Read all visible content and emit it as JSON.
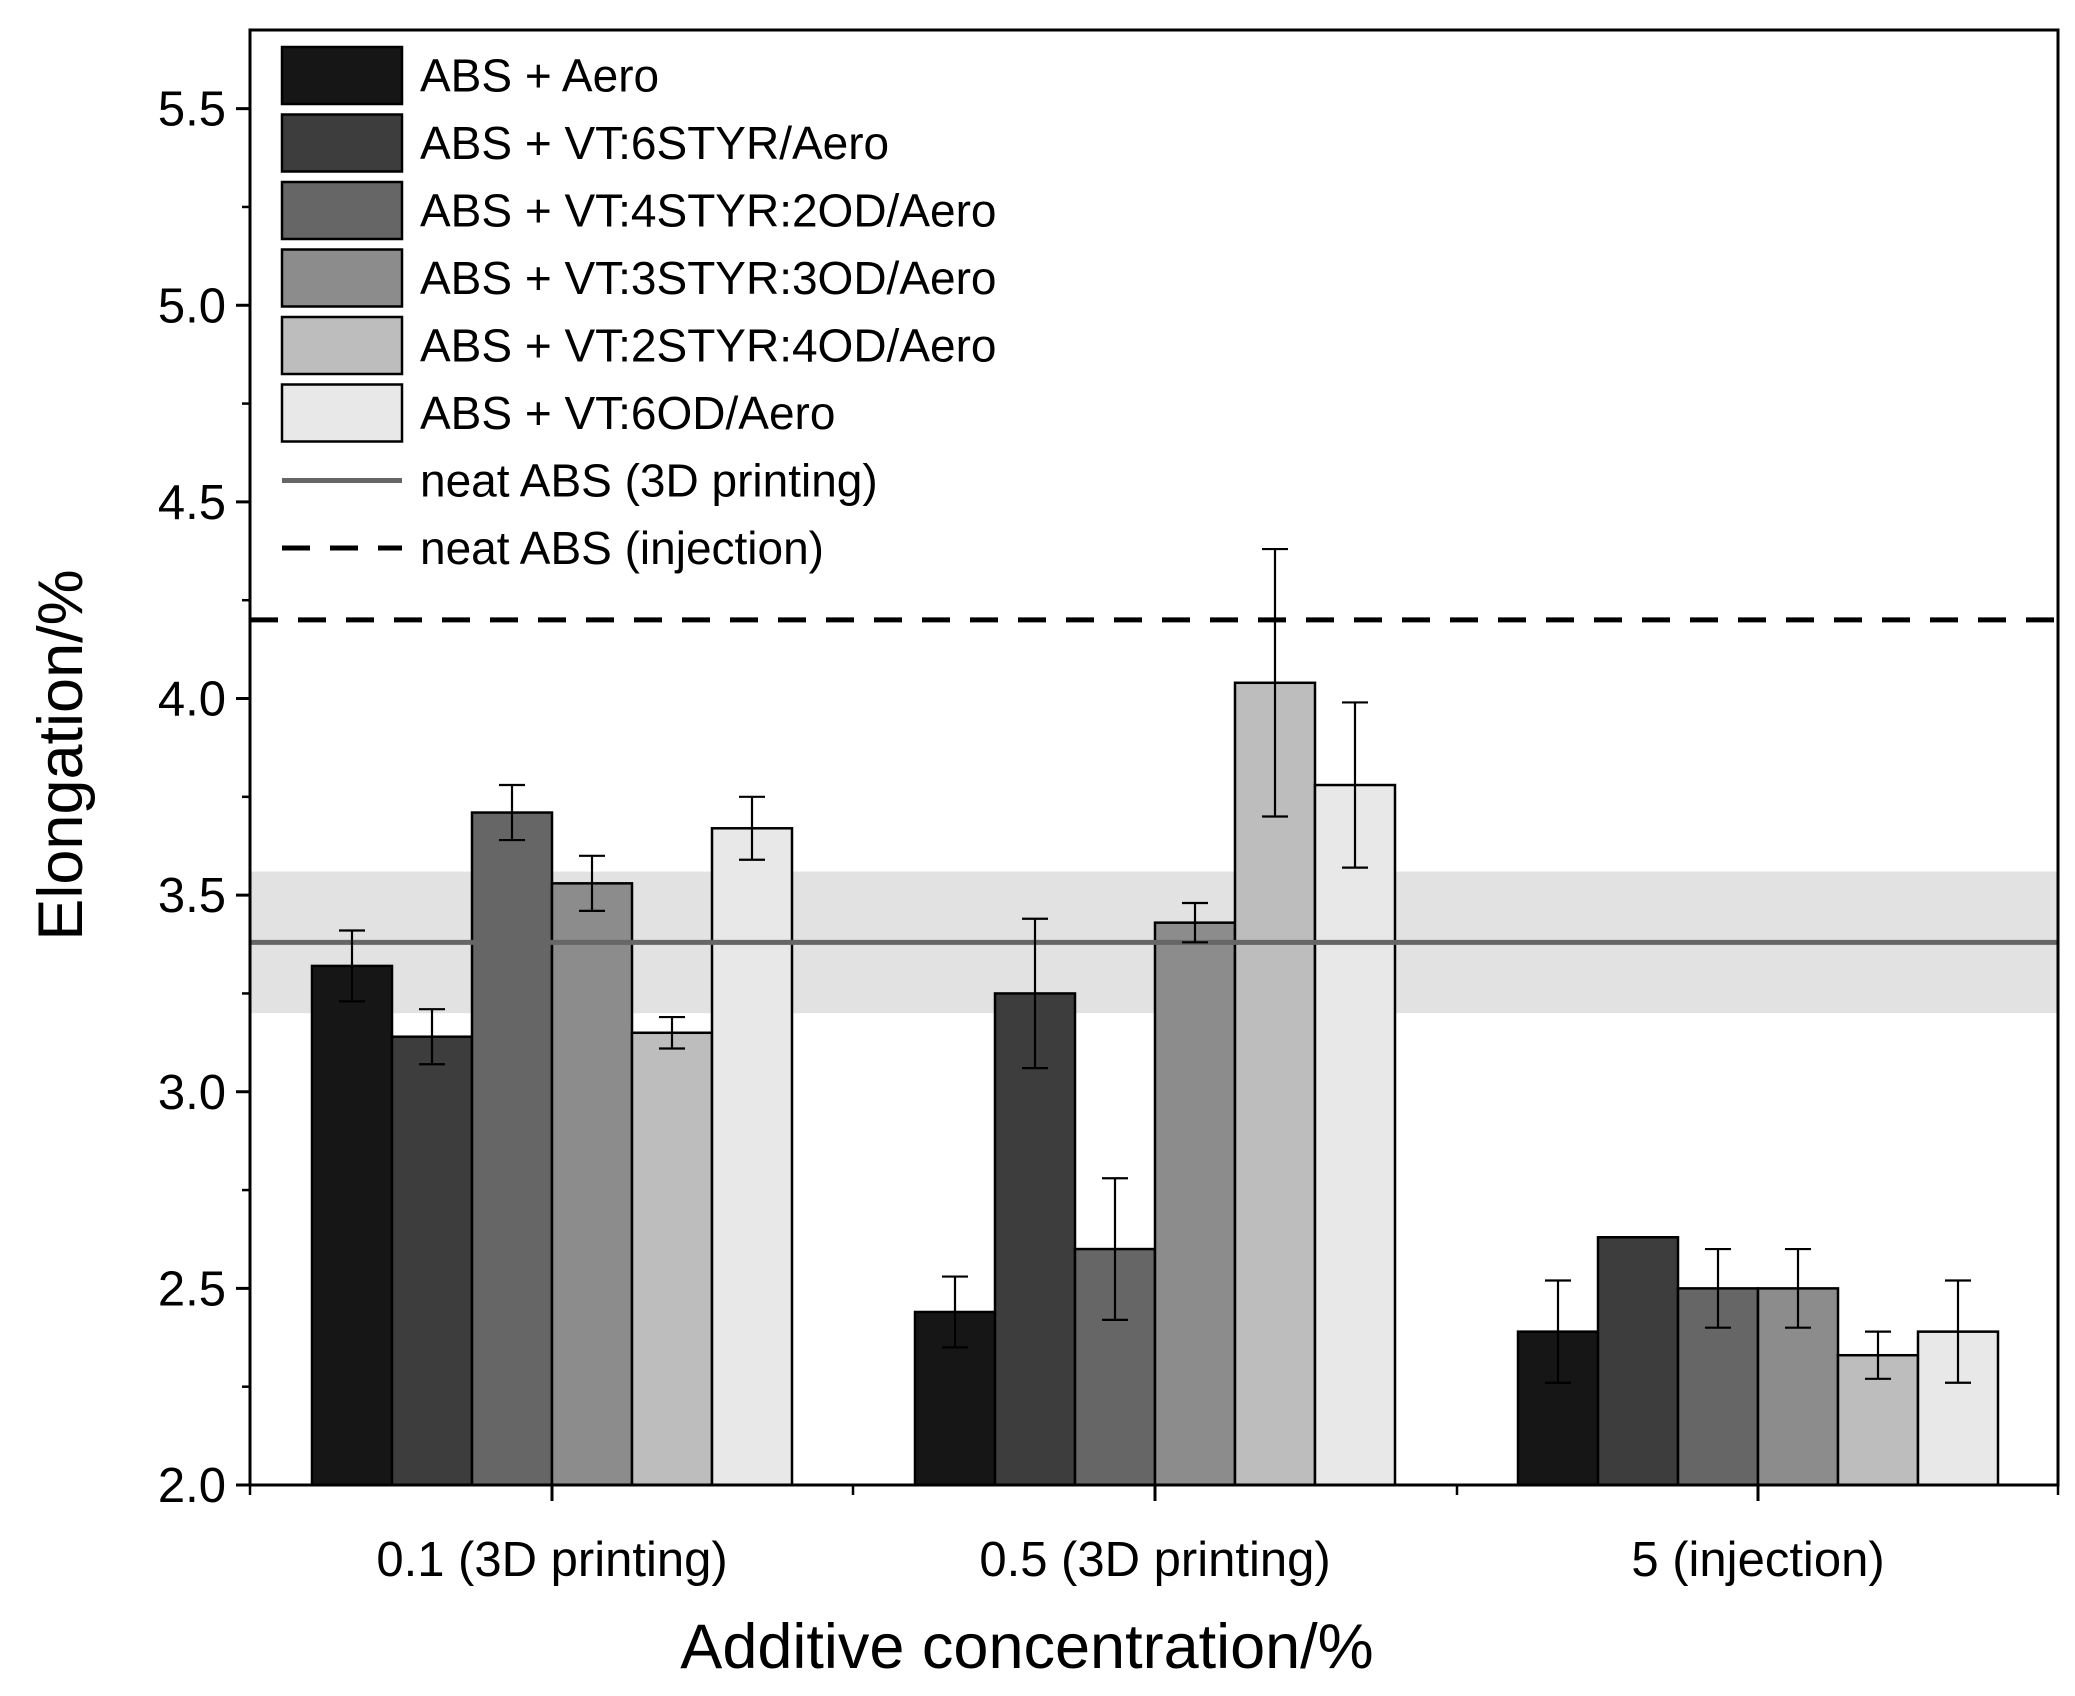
{
  "chart_data": {
    "type": "bar",
    "title": "",
    "xlabel": "Additive concentration/%",
    "ylabel": "Elongation/%",
    "ylim": [
      2.0,
      5.7
    ],
    "yticks": [
      "2.0",
      "2.5",
      "3.0",
      "3.5",
      "4.0",
      "4.5",
      "5.0",
      "5.5"
    ],
    "categories": [
      "0.1 (3D printing)",
      "0.5 (3D printing)",
      "5 (injection)"
    ],
    "series": [
      {
        "name": "ABS + Aero",
        "color": "#161616",
        "values": [
          3.32,
          2.44,
          2.39
        ],
        "errors": [
          0.09,
          0.09,
          0.13
        ]
      },
      {
        "name": "ABS + VT:6STYR/Aero",
        "color": "#3d3d3d",
        "values": [
          3.14,
          3.25,
          2.63
        ],
        "errors": [
          0.07,
          0.19,
          0.0
        ]
      },
      {
        "name": "ABS + VT:4STYR:2OD/Aero",
        "color": "#666666",
        "values": [
          3.71,
          2.6,
          2.5
        ],
        "errors": [
          0.07,
          0.18,
          0.1
        ]
      },
      {
        "name": "ABS + VT:3STYR:3OD/Aero",
        "color": "#8c8c8c",
        "values": [
          3.53,
          3.43,
          2.5
        ],
        "errors": [
          0.07,
          0.05,
          0.1
        ]
      },
      {
        "name": "ABS + VT:2STYR:4OD/Aero",
        "color": "#bdbdbd",
        "values": [
          3.15,
          4.04,
          2.33
        ],
        "errors": [
          0.04,
          0.34,
          0.06
        ]
      },
      {
        "name": "ABS + VT:6OD/Aero",
        "color": "#e8e8e8",
        "values": [
          3.67,
          3.78,
          2.39
        ],
        "errors": [
          0.08,
          0.21,
          0.13
        ]
      }
    ],
    "reference_lines": [
      {
        "name": "neat ABS (3D printing)",
        "value": 3.38,
        "band": [
          3.2,
          3.56
        ],
        "style": "solid",
        "color": "#666666",
        "band_color": "#dddddd"
      },
      {
        "name": "neat ABS (injection)",
        "value": 4.2,
        "style": "dashed",
        "color": "#000000"
      }
    ],
    "legend_position": "top-left"
  }
}
